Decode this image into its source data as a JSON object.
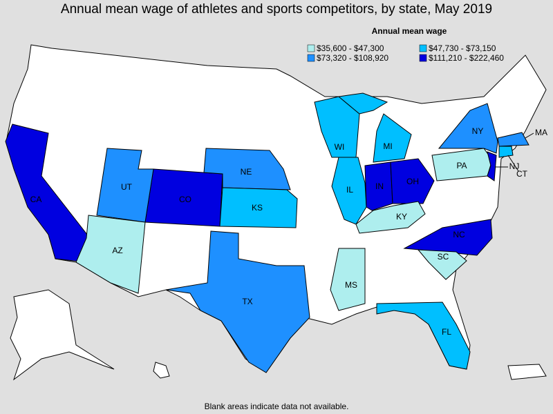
{
  "title": "Annual mean wage of athletes and sports competitors, by state, May 2019",
  "legend": {
    "title": "Annual mean wage",
    "items": [
      {
        "label": "$35,600 - $47,300",
        "color": "#aeeeee"
      },
      {
        "label": "$47,730 - $73,150",
        "color": "#00bfff"
      },
      {
        "label": "$73,320 - $108,920",
        "color": "#1e90ff"
      },
      {
        "label": "$111,210 - $222,460",
        "color": "#0000e0"
      }
    ]
  },
  "states": [
    {
      "label": "CA",
      "class": 3
    },
    {
      "label": "CO",
      "class": 3
    },
    {
      "label": "UT",
      "class": 2
    },
    {
      "label": "AZ",
      "class": 0
    },
    {
      "label": "NE",
      "class": 2
    },
    {
      "label": "KS",
      "class": 1
    },
    {
      "label": "TX",
      "class": 2
    },
    {
      "label": "WI",
      "class": 1
    },
    {
      "label": "IL",
      "class": 1
    },
    {
      "label": "MI",
      "class": 1
    },
    {
      "label": "IN",
      "class": 3
    },
    {
      "label": "OH",
      "class": 3
    },
    {
      "label": "KY",
      "class": 0
    },
    {
      "label": "PA",
      "class": 0
    },
    {
      "label": "NY",
      "class": 2
    },
    {
      "label": "MA",
      "class": 2
    },
    {
      "label": "CT",
      "class": 1
    },
    {
      "label": "NJ",
      "class": 3
    },
    {
      "label": "NC",
      "class": 3
    },
    {
      "label": "SC",
      "class": 0
    },
    {
      "label": "MS",
      "class": 0
    },
    {
      "label": "FL",
      "class": 1
    }
  ],
  "note": "Blank areas indicate data not available."
}
